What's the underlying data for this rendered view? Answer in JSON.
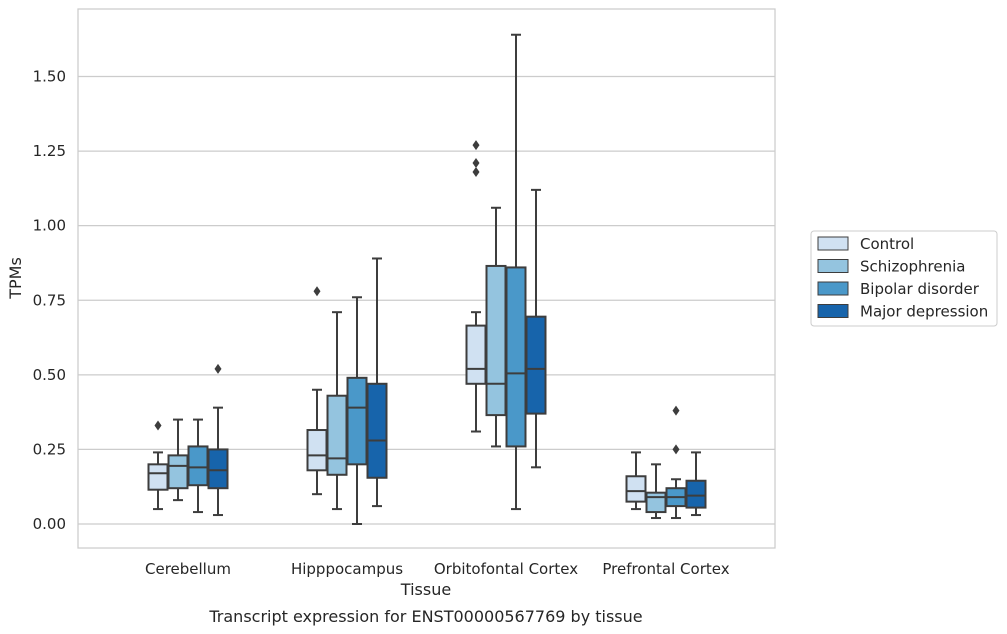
{
  "chart_data": {
    "type": "box",
    "xlabel": "Tissue",
    "ylabel": "TPMs",
    "caption": "Transcript expression for ENST00000567769 by tissue",
    "ylim": [
      -0.08,
      1.68
    ],
    "yticks": [
      "0.00",
      "0.25",
      "0.50",
      "0.75",
      "1.00",
      "1.25",
      "1.50"
    ],
    "ytick_values": [
      0,
      0.25,
      0.5,
      0.75,
      1.0,
      1.25,
      1.5
    ],
    "grid": "horizontal",
    "legend_position": "right",
    "categories": [
      "Cerebellum",
      "Hipppocampus",
      "Orbitofontal Cortex",
      "Prefrontal Cortex"
    ],
    "series": [
      {
        "name": "Control",
        "color": "#d0e1f2",
        "boxes": [
          {
            "whislo": 0.05,
            "q1": 0.115,
            "med": 0.17,
            "q3": 0.2,
            "whishi": 0.24,
            "fliers": [
              0.33
            ]
          },
          {
            "whislo": 0.1,
            "q1": 0.18,
            "med": 0.23,
            "q3": 0.315,
            "whishi": 0.45,
            "fliers": [
              0.78
            ]
          },
          {
            "whislo": 0.31,
            "q1": 0.47,
            "med": 0.52,
            "q3": 0.665,
            "whishi": 0.71,
            "fliers": [
              1.18,
              1.21,
              1.27
            ]
          },
          {
            "whislo": 0.05,
            "q1": 0.075,
            "med": 0.11,
            "q3": 0.16,
            "whishi": 0.24,
            "fliers": []
          }
        ]
      },
      {
        "name": "Schizophrenia",
        "color": "#94c4df",
        "boxes": [
          {
            "whislo": 0.08,
            "q1": 0.12,
            "med": 0.195,
            "q3": 0.23,
            "whishi": 0.35,
            "fliers": []
          },
          {
            "whislo": 0.05,
            "q1": 0.165,
            "med": 0.22,
            "q3": 0.43,
            "whishi": 0.71,
            "fliers": []
          },
          {
            "whislo": 0.26,
            "q1": 0.365,
            "med": 0.47,
            "q3": 0.865,
            "whishi": 1.06,
            "fliers": []
          },
          {
            "whislo": 0.02,
            "q1": 0.04,
            "med": 0.09,
            "q3": 0.105,
            "whishi": 0.2,
            "fliers": []
          }
        ]
      },
      {
        "name": "Bipolar disorder",
        "color": "#4a98c9",
        "boxes": [
          {
            "whislo": 0.04,
            "q1": 0.13,
            "med": 0.19,
            "q3": 0.26,
            "whishi": 0.35,
            "fliers": []
          },
          {
            "whislo": 0.0,
            "q1": 0.2,
            "med": 0.39,
            "q3": 0.49,
            "whishi": 0.76,
            "fliers": []
          },
          {
            "whislo": 0.05,
            "q1": 0.26,
            "med": 0.505,
            "q3": 0.86,
            "whishi": 1.64,
            "fliers": []
          },
          {
            "whislo": 0.02,
            "q1": 0.06,
            "med": 0.09,
            "q3": 0.12,
            "whishi": 0.15,
            "fliers": [
              0.25,
              0.38
            ]
          }
        ]
      },
      {
        "name": "Major depression",
        "color": "#1764ab",
        "boxes": [
          {
            "whislo": 0.03,
            "q1": 0.12,
            "med": 0.18,
            "q3": 0.25,
            "whishi": 0.39,
            "fliers": [
              0.52
            ]
          },
          {
            "whislo": 0.06,
            "q1": 0.155,
            "med": 0.28,
            "q3": 0.47,
            "whishi": 0.89,
            "fliers": []
          },
          {
            "whislo": 0.19,
            "q1": 0.37,
            "med": 0.52,
            "q3": 0.695,
            "whishi": 1.12,
            "fliers": []
          },
          {
            "whislo": 0.03,
            "q1": 0.055,
            "med": 0.095,
            "q3": 0.145,
            "whishi": 0.24,
            "fliers": []
          }
        ]
      }
    ]
  }
}
